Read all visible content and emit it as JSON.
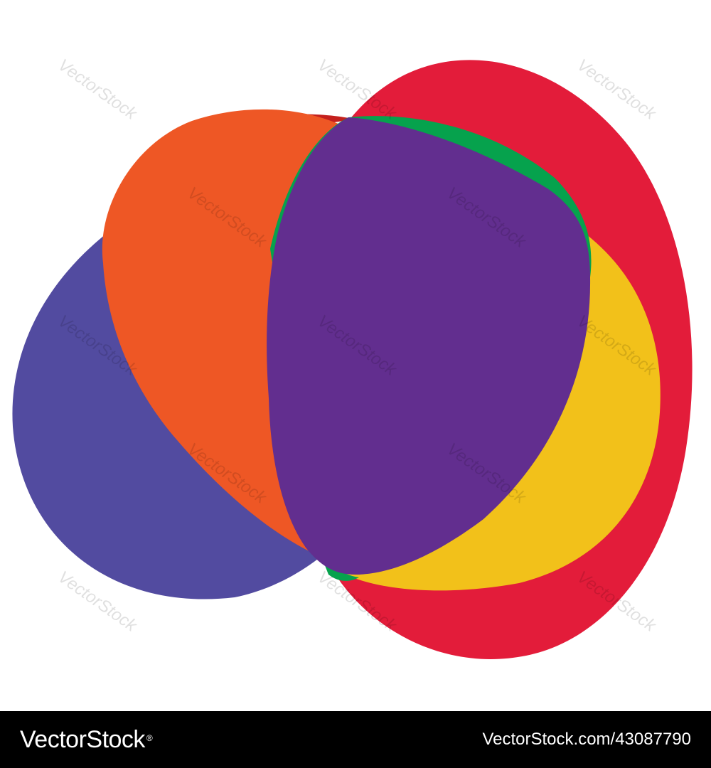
{
  "artwork": {
    "colors": {
      "blue": "#524ba0",
      "dark_red": "#c4201d",
      "orange": "#ee5725",
      "red": "#e31c3a",
      "green": "#06a24d",
      "yellow": "#f2c11a",
      "purple": "#622e8f"
    },
    "watermark_text": "VectorStock"
  },
  "footer": {
    "brand": "VectorStock",
    "registered": "®",
    "image_id": "VectorStock.com/43087790"
  }
}
